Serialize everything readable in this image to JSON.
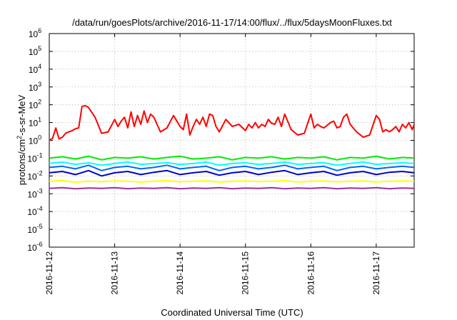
{
  "chart_data": {
    "type": "line",
    "title": "/data/run/goesPlots/archive/2016-11-17/14:00/flux/../flux/5daysMoonFluxes.txt",
    "xlabel": "Coordinated Universal Time (UTC)",
    "ylabel_parts": [
      "protons/cm",
      "2",
      "-s-sr-MeV"
    ],
    "x_start": "2016-11-12",
    "x_end": "2016-11-17 14:00",
    "x_ticks": [
      {
        "value": 0,
        "label": "2016-11-12"
      },
      {
        "value": 1,
        "label": "2016-11-13"
      },
      {
        "value": 2,
        "label": "2016-11-14"
      },
      {
        "value": 3,
        "label": "2016-11-15"
      },
      {
        "value": 4,
        "label": "2016-11-16"
      },
      {
        "value": 5,
        "label": "2016-11-17"
      }
    ],
    "y_scale": "log",
    "ylim": [
      1e-06,
      1000000.0
    ],
    "y_ticks": [
      {
        "exp": -6,
        "base": "10",
        "sup": "-6"
      },
      {
        "exp": -5,
        "base": "10",
        "sup": "-5"
      },
      {
        "exp": -4,
        "base": "10",
        "sup": "-4"
      },
      {
        "exp": -3,
        "base": "10",
        "sup": "-3"
      },
      {
        "exp": -2,
        "base": "10",
        "sup": "-2"
      },
      {
        "exp": -1,
        "base": "10",
        "sup": "-1"
      },
      {
        "exp": 0,
        "base": "10",
        "sup": "0"
      },
      {
        "exp": 1,
        "base": "10",
        "sup": "1"
      },
      {
        "exp": 2,
        "base": "10",
        "sup": "2"
      },
      {
        "exp": 3,
        "base": "10",
        "sup": "3"
      },
      {
        "exp": 4,
        "base": "10",
        "sup": "4"
      },
      {
        "exp": 5,
        "base": "10",
        "sup": "5"
      },
      {
        "exp": 6,
        "base": "10",
        "sup": "6"
      }
    ],
    "grid": true,
    "series": [
      {
        "color": "#ff0000",
        "x": [
          0,
          0.05,
          0.1,
          0.15,
          0.2,
          0.25,
          0.3,
          0.35,
          0.4,
          0.45,
          0.5,
          0.55,
          0.6,
          0.7,
          0.8,
          0.9,
          1,
          1.05,
          1.1,
          1.15,
          1.2,
          1.25,
          1.3,
          1.35,
          1.4,
          1.45,
          1.5,
          1.55,
          1.6,
          1.7,
          1.8,
          1.9,
          2,
          2.05,
          2.1,
          2.15,
          2.2,
          2.25,
          2.3,
          2.35,
          2.4,
          2.45,
          2.5,
          2.55,
          2.6,
          2.7,
          2.8,
          2.9,
          3,
          3.05,
          3.1,
          3.15,
          3.2,
          3.25,
          3.3,
          3.35,
          3.4,
          3.45,
          3.5,
          3.55,
          3.6,
          3.7,
          3.8,
          3.9,
          4,
          4.05,
          4.1,
          4.15,
          4.2,
          4.25,
          4.3,
          4.35,
          4.4,
          4.45,
          4.5,
          4.55,
          4.6,
          4.7,
          4.8,
          4.9,
          5,
          5.05,
          5.1,
          5.15,
          5.2,
          5.25,
          5.3,
          5.35,
          5.4,
          5.45,
          5.5,
          5.55,
          5.58
        ],
        "y": [
          1.0,
          1.3,
          5.0,
          1.2,
          1.5,
          2.5,
          3.0,
          3.5,
          4.5,
          5.0,
          80,
          90,
          70,
          20,
          2.5,
          3.0,
          15,
          6.0,
          12,
          20,
          5.0,
          40,
          6.0,
          25,
          8.0,
          45,
          10,
          30,
          20,
          3.0,
          5.0,
          25,
          6.0,
          4.0,
          30,
          2.0,
          6.0,
          15,
          8.0,
          20,
          6.0,
          30,
          25,
          6.0,
          3.0,
          15,
          6.0,
          8.0,
          3.5,
          8.0,
          5.0,
          10,
          5.0,
          8.0,
          6.0,
          15,
          9.0,
          8.0,
          20,
          6.0,
          30,
          4.0,
          2.0,
          2.5,
          30,
          5.0,
          8.0,
          6.0,
          5.0,
          7.0,
          10,
          12,
          5.0,
          6.0,
          20,
          30,
          8.0,
          3.0,
          1.5,
          2.0,
          25,
          15,
          3.0,
          4.0,
          3.0,
          4.0,
          6.0,
          3.0,
          8.0,
          5.0,
          10,
          4.0,
          8.0
        ]
      },
      {
        "color": "#00ee00",
        "x": [
          0,
          0.2,
          0.4,
          0.6,
          0.8,
          1,
          1.2,
          1.4,
          1.6,
          1.8,
          2,
          2.2,
          2.4,
          2.6,
          2.8,
          3,
          3.2,
          3.4,
          3.6,
          3.8,
          4,
          4.2,
          4.4,
          4.6,
          4.8,
          5,
          5.2,
          5.4,
          5.58
        ],
        "y": [
          0.1,
          0.12,
          0.09,
          0.13,
          0.08,
          0.11,
          0.1,
          0.12,
          0.09,
          0.11,
          0.13,
          0.09,
          0.1,
          0.12,
          0.08,
          0.11,
          0.1,
          0.12,
          0.09,
          0.11,
          0.1,
          0.12,
          0.08,
          0.11,
          0.1,
          0.13,
          0.09,
          0.11,
          0.1
        ]
      },
      {
        "color": "#00ffff",
        "x": [
          0,
          0.2,
          0.4,
          0.6,
          0.8,
          1,
          1.2,
          1.4,
          1.6,
          1.8,
          2,
          2.2,
          2.4,
          2.6,
          2.8,
          3,
          3.2,
          3.4,
          3.6,
          3.8,
          4,
          4.2,
          4.4,
          4.6,
          4.8,
          5,
          5.2,
          5.4,
          5.58
        ],
        "y": [
          0.05,
          0.06,
          0.045,
          0.055,
          0.04,
          0.05,
          0.06,
          0.045,
          0.05,
          0.055,
          0.045,
          0.05,
          0.06,
          0.04,
          0.05,
          0.055,
          0.045,
          0.05,
          0.06,
          0.045,
          0.05,
          0.055,
          0.04,
          0.05,
          0.06,
          0.045,
          0.05,
          0.055,
          0.05
        ]
      },
      {
        "color": "#0066ff",
        "x": [
          0,
          0.2,
          0.4,
          0.6,
          0.8,
          1,
          1.2,
          1.4,
          1.6,
          1.8,
          2,
          2.2,
          2.4,
          2.6,
          2.8,
          3,
          3.2,
          3.4,
          3.6,
          3.8,
          4,
          4.2,
          4.4,
          4.6,
          4.8,
          5,
          5.2,
          5.4,
          5.58
        ],
        "y": [
          0.03,
          0.035,
          0.025,
          0.04,
          0.02,
          0.03,
          0.035,
          0.025,
          0.03,
          0.04,
          0.025,
          0.03,
          0.035,
          0.02,
          0.03,
          0.035,
          0.025,
          0.03,
          0.04,
          0.025,
          0.03,
          0.035,
          0.02,
          0.03,
          0.035,
          0.025,
          0.03,
          0.035,
          0.03
        ]
      },
      {
        "color": "#0000cc",
        "x": [
          0,
          0.2,
          0.4,
          0.6,
          0.8,
          1,
          1.2,
          1.4,
          1.6,
          1.8,
          2,
          2.2,
          2.4,
          2.6,
          2.8,
          3,
          3.2,
          3.4,
          3.6,
          3.8,
          4,
          4.2,
          4.4,
          4.6,
          4.8,
          5,
          5.2,
          5.4,
          5.58
        ],
        "y": [
          0.015,
          0.018,
          0.012,
          0.02,
          0.01,
          0.015,
          0.018,
          0.012,
          0.016,
          0.02,
          0.012,
          0.015,
          0.018,
          0.011,
          0.015,
          0.018,
          0.012,
          0.016,
          0.02,
          0.012,
          0.015,
          0.018,
          0.011,
          0.015,
          0.018,
          0.012,
          0.016,
          0.018,
          0.015
        ]
      },
      {
        "color": "#ffff00",
        "x": [
          0,
          0.2,
          0.4,
          0.6,
          0.8,
          1,
          1.2,
          1.4,
          1.6,
          1.8,
          2,
          2.2,
          2.4,
          2.6,
          2.8,
          3,
          3.2,
          3.4,
          3.6,
          3.8,
          4,
          4.2,
          4.4,
          4.6,
          4.8,
          5,
          5.2,
          5.4,
          5.58
        ],
        "y": [
          0.005,
          0.0055,
          0.0045,
          0.005,
          0.0048,
          0.0052,
          0.005,
          0.0046,
          0.005,
          0.0054,
          0.0047,
          0.005,
          0.0053,
          0.0046,
          0.005,
          0.0052,
          0.0048,
          0.005,
          0.0054,
          0.0046,
          0.005,
          0.0052,
          0.0047,
          0.005,
          0.0053,
          0.0046,
          0.005,
          0.0052,
          0.005
        ]
      },
      {
        "color": "#993399",
        "x": [
          0,
          0.2,
          0.4,
          0.6,
          0.8,
          1,
          1.2,
          1.4,
          1.6,
          1.8,
          2,
          2.2,
          2.4,
          2.6,
          2.8,
          3,
          3.2,
          3.4,
          3.6,
          3.8,
          4,
          4.2,
          4.4,
          4.6,
          4.8,
          5,
          5.2,
          5.4,
          5.58
        ],
        "y": [
          0.002,
          0.0022,
          0.0019,
          0.0021,
          0.002,
          0.0022,
          0.0019,
          0.0021,
          0.002,
          0.0022,
          0.0019,
          0.0021,
          0.002,
          0.0022,
          0.0019,
          0.0021,
          0.002,
          0.0022,
          0.0019,
          0.0021,
          0.002,
          0.0022,
          0.0019,
          0.0021,
          0.002,
          0.0022,
          0.0019,
          0.0021,
          0.002
        ]
      }
    ]
  }
}
